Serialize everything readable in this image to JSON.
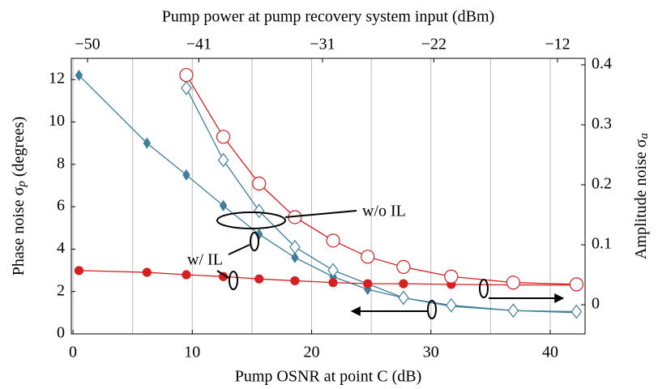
{
  "chart_data": {
    "type": "line",
    "xlabel": "Pump OSNR at point C (dB)",
    "x2label": "Pump power at pump recovery system input (dBm)",
    "ylabel": [
      "Phase noise σ",
      "p",
      " (degrees)"
    ],
    "y2label": [
      "Amplitude noise σ",
      "a"
    ],
    "xlim": [
      -0.14,
      42.92
    ],
    "xticks": [
      0,
      10,
      20,
      30,
      40
    ],
    "x2lim": [
      -51.31,
      -9.77
    ],
    "x2ticks": [
      {
        "value": -50,
        "label": "−50"
      },
      {
        "value": -41,
        "label": "−41"
      },
      {
        "value": -31,
        "label": "−31"
      },
      {
        "value": -22,
        "label": "−22"
      },
      {
        "value": -12,
        "label": "−12"
      }
    ],
    "ylim": [
      0,
      13
    ],
    "yticks": [
      0,
      2,
      4,
      6,
      8,
      10,
      12
    ],
    "y2lim": [
      -0.0486,
      0.4108
    ],
    "y2ticks": [
      0,
      0.1,
      0.2,
      0.3,
      0.4
    ],
    "grid": true,
    "series": [
      {
        "color": "#3f7f9c",
        "marker": "diamond",
        "filled": true,
        "x": [
          0.5,
          6.2,
          9.5,
          12.6,
          15.6,
          18.6,
          21.8,
          24.7,
          27.7,
          31.7,
          36.9,
          42.2
        ],
        "values": [
          12.2,
          9.0,
          7.5,
          6.05,
          4.7,
          3.6,
          2.7,
          2.1,
          1.7,
          1.3,
          1.1,
          1.0
        ]
      },
      {
        "color": "#3f7f9c",
        "marker": "diamond",
        "filled": false,
        "x": [
          9.5,
          12.6,
          15.6,
          18.6,
          21.8,
          27.7,
          31.7,
          36.9,
          42.2
        ],
        "values": [
          11.6,
          8.2,
          5.8,
          4.1,
          3.0,
          1.7,
          1.35,
          1.1,
          1.05
        ]
      },
      {
        "color": "#d42020",
        "marker": "circle",
        "filled": true,
        "axis": "y2",
        "x": [
          0.5,
          6.2,
          9.5,
          12.6,
          15.6,
          18.6,
          21.8,
          24.7,
          27.7,
          31.7,
          36.9,
          42.2
        ],
        "values": [
          0.057,
          0.054,
          0.05,
          0.047,
          0.043,
          0.04,
          0.037,
          0.035,
          0.035,
          0.034,
          0.033,
          0.033
        ]
      },
      {
        "color": "#d42020",
        "marker": "circle",
        "filled": false,
        "axis": "y2",
        "x": [
          9.5,
          12.6,
          15.6,
          18.6,
          21.8,
          24.7,
          27.7,
          31.7,
          36.9,
          42.2
        ],
        "values": [
          0.383,
          0.28,
          0.202,
          0.146,
          0.107,
          0.08,
          0.063,
          0.047,
          0.037,
          0.034
        ]
      }
    ],
    "annotations": [
      "w/o IL",
      "w/ IL"
    ]
  }
}
